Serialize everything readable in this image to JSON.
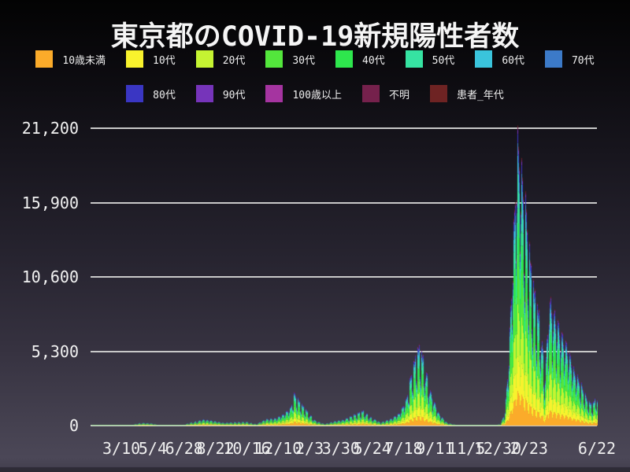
{
  "title": "東京都のCOVID-19新規陽性者数",
  "chart_data": {
    "type": "area",
    "stacked": true,
    "title": "東京都のCOVID-19新規陽性者数",
    "legend_position": "top",
    "grid": "horizontal",
    "gridline_color": "#c9c9c9",
    "x_start_date": "2020-01-16",
    "x_end_date": "2022-06-22",
    "y_ticks": [
      {
        "label": "0",
        "value": 0
      },
      {
        "label": "5,300",
        "value": 5300
      },
      {
        "label": "10,600",
        "value": 10600
      },
      {
        "label": "15,900",
        "value": 15900
      },
      {
        "label": "21,200",
        "value": 21200
      }
    ],
    "y_max_render": 21900,
    "x_ticks": [
      {
        "label": "3/10",
        "day": 54
      },
      {
        "label": "5/4",
        "day": 109
      },
      {
        "label": "6/28",
        "day": 164
      },
      {
        "label": "8/22",
        "day": 219
      },
      {
        "label": "10/16",
        "day": 274
      },
      {
        "label": "12/10",
        "day": 329
      },
      {
        "label": "2/3",
        "day": 384
      },
      {
        "label": "3/30",
        "day": 439
      },
      {
        "label": "5/24",
        "day": 494
      },
      {
        "label": "7/18",
        "day": 549
      },
      {
        "label": "9/11",
        "day": 604
      },
      {
        "label": "11/5",
        "day": 659
      },
      {
        "label": "12/30",
        "day": 714
      },
      {
        "label": "2/23",
        "day": 769
      },
      {
        "label": "6/22",
        "day": 888
      }
    ],
    "series_groups": [
      {
        "name": "10歳未満",
        "color": "#fbab2a",
        "share": 0.115
      },
      {
        "name": "10代",
        "color": "#f8f22d",
        "share": 0.115
      },
      {
        "name": "20代",
        "color": "#c5f432",
        "share": 0.175
      },
      {
        "name": "30代",
        "color": "#53e63c",
        "share": 0.165
      },
      {
        "name": "40代",
        "color": "#2ee64d",
        "share": 0.155
      },
      {
        "name": "50代",
        "color": "#36e3a2",
        "share": 0.115
      },
      {
        "name": "60代",
        "color": "#3ac4dc",
        "share": 0.06
      },
      {
        "name": "70代",
        "color": "#3c7ac8",
        "share": 0.042
      },
      {
        "name": "80代",
        "color": "#3a36c3",
        "share": 0.03
      },
      {
        "name": "90代",
        "color": "#7634ba",
        "share": 0.013
      },
      {
        "name": "100歳以上",
        "color": "#a534a0",
        "share": 0.002
      },
      {
        "name": "不明",
        "color": "#75214c",
        "share": 0.008
      },
      {
        "name": "患者_年代",
        "color": "#6e2323",
        "share": 0.005
      }
    ],
    "weekday_factors": [
      0.95,
      1.0,
      0.9,
      0.62,
      0.52,
      0.78,
      1.0
    ],
    "total_envelope": [
      [
        "2020-01-16",
        0
      ],
      [
        "2020-02-20",
        6
      ],
      [
        "2020-03-10",
        18
      ],
      [
        "2020-03-28",
        64
      ],
      [
        "2020-04-11",
        197
      ],
      [
        "2020-04-17",
        206
      ],
      [
        "2020-05-01",
        165
      ],
      [
        "2020-05-16",
        20
      ],
      [
        "2020-06-01",
        13
      ],
      [
        "2020-06-26",
        54
      ],
      [
        "2020-07-10",
        243
      ],
      [
        "2020-08-01",
        472
      ],
      [
        "2020-08-20",
        339
      ],
      [
        "2020-09-05",
        211
      ],
      [
        "2020-09-26",
        270
      ],
      [
        "2020-10-15",
        284
      ],
      [
        "2020-11-01",
        116
      ],
      [
        "2020-11-18",
        493
      ],
      [
        "2020-12-05",
        561
      ],
      [
        "2020-12-17",
        822
      ],
      [
        "2020-12-31",
        1337
      ],
      [
        "2021-01-07",
        2520
      ],
      [
        "2021-01-16",
        1809
      ],
      [
        "2021-01-30",
        1070
      ],
      [
        "2021-02-13",
        369
      ],
      [
        "2021-03-01",
        121
      ],
      [
        "2021-03-18",
        323
      ],
      [
        "2021-04-03",
        446
      ],
      [
        "2021-04-22",
        861
      ],
      [
        "2021-05-08",
        1130
      ],
      [
        "2021-05-21",
        649
      ],
      [
        "2021-06-07",
        235
      ],
      [
        "2021-06-26",
        534
      ],
      [
        "2021-07-10",
        950
      ],
      [
        "2021-07-22",
        1979
      ],
      [
        "2021-07-31",
        4058
      ],
      [
        "2021-08-13",
        5908
      ],
      [
        "2021-08-21",
        5074
      ],
      [
        "2021-09-04",
        2362
      ],
      [
        "2021-09-18",
        862
      ],
      [
        "2021-10-02",
        200
      ],
      [
        "2021-10-16",
        66
      ],
      [
        "2021-11-01",
        22
      ],
      [
        "2021-11-20",
        20
      ],
      [
        "2021-12-08",
        27
      ],
      [
        "2021-12-24",
        39
      ],
      [
        "2022-01-03",
        103
      ],
      [
        "2022-01-11",
        962
      ],
      [
        "2022-01-18",
        5185
      ],
      [
        "2022-01-26",
        14086
      ],
      [
        "2022-02-02",
        21562
      ],
      [
        "2022-02-10",
        18891
      ],
      [
        "2022-02-18",
        16129
      ],
      [
        "2022-02-26",
        11562
      ],
      [
        "2022-03-08",
        8925
      ],
      [
        "2022-03-15",
        7836
      ],
      [
        "2022-03-22",
        3533
      ],
      [
        "2022-03-30",
        9520
      ],
      [
        "2022-04-09",
        8234
      ],
      [
        "2022-04-20",
        6797
      ],
      [
        "2022-04-30",
        5899
      ],
      [
        "2022-05-12",
        4216
      ],
      [
        "2022-05-24",
        3271
      ],
      [
        "2022-06-04",
        2071
      ],
      [
        "2022-06-13",
        1546
      ],
      [
        "2022-06-22",
        2329
      ]
    ]
  }
}
